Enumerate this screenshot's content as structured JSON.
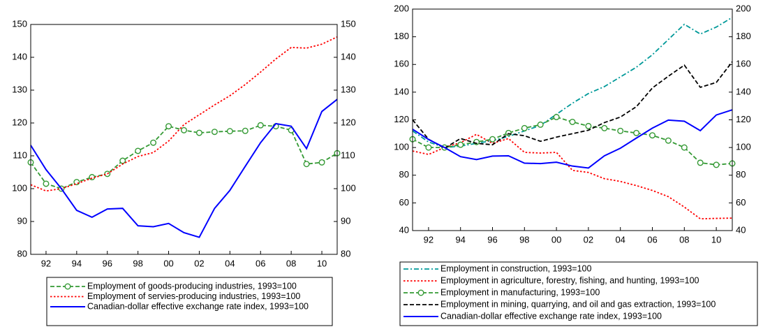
{
  "chart_data": [
    {
      "type": "line",
      "x": [
        1991,
        1992,
        1993,
        1994,
        1995,
        1996,
        1997,
        1998,
        1999,
        2000,
        2001,
        2002,
        2003,
        2004,
        2005,
        2006,
        2007,
        2008,
        2009,
        2010,
        2011
      ],
      "xlim": [
        1991,
        2011
      ],
      "xticks": [
        {
          "value": 1992,
          "label": "92"
        },
        {
          "value": 1994,
          "label": "94"
        },
        {
          "value": 1996,
          "label": "96"
        },
        {
          "value": 1998,
          "label": "98"
        },
        {
          "value": 2000,
          "label": "00"
        },
        {
          "value": 2002,
          "label": "02"
        },
        {
          "value": 2004,
          "label": "04"
        },
        {
          "value": 2006,
          "label": "06"
        },
        {
          "value": 2008,
          "label": "08"
        },
        {
          "value": 2010,
          "label": "10"
        }
      ],
      "ylim": [
        80,
        150
      ],
      "yticks": [
        80,
        90,
        100,
        110,
        120,
        130,
        140,
        150
      ],
      "y2lim": [
        80,
        150
      ],
      "y2ticks": [
        80,
        90,
        100,
        110,
        120,
        130,
        140,
        150
      ],
      "series": [
        {
          "name": "Employment of goods-producing industries, 1993=100",
          "color": "#339933",
          "style": "dashed",
          "marker": "circle",
          "values": [
            108,
            101.5,
            100,
            102,
            103.5,
            104.5,
            108.5,
            111.5,
            114,
            119,
            117.8,
            117,
            117.3,
            117.5,
            117.6,
            119.3,
            119,
            117.8,
            107.5,
            108,
            110.8
          ]
        },
        {
          "name": "Employment of servies-producing industries, 1993=100",
          "color": "#ff0000",
          "style": "dotted",
          "values": [
            101.2,
            99.3,
            100,
            101.5,
            103.2,
            104.5,
            107.5,
            109.8,
            111,
            114.5,
            119.5,
            122.5,
            125.5,
            128.3,
            131.7,
            135.5,
            139.5,
            143,
            142.8,
            144,
            146.2
          ]
        },
        {
          "name": "Canadian-dollar effective exchange rate index, 1993=100",
          "color": "#0000ff",
          "style": "solid",
          "values": [
            113.2,
            105.8,
            100,
            93.4,
            91.3,
            93.8,
            94,
            88.7,
            88.4,
            89.4,
            86.6,
            85.2,
            94,
            99.5,
            106.8,
            114,
            119.8,
            119,
            112.2,
            123.5,
            127.2
          ]
        }
      ]
    },
    {
      "type": "line",
      "x": [
        1991,
        1992,
        1993,
        1994,
        1995,
        1996,
        1997,
        1998,
        1999,
        2000,
        2001,
        2002,
        2003,
        2004,
        2005,
        2006,
        2007,
        2008,
        2009,
        2010,
        2011
      ],
      "xlim": [
        1991,
        2011
      ],
      "xticks": [
        {
          "value": 1992,
          "label": "92"
        },
        {
          "value": 1994,
          "label": "94"
        },
        {
          "value": 1996,
          "label": "96"
        },
        {
          "value": 1998,
          "label": "98"
        },
        {
          "value": 2000,
          "label": "00"
        },
        {
          "value": 2002,
          "label": "02"
        },
        {
          "value": 2004,
          "label": "04"
        },
        {
          "value": 2006,
          "label": "06"
        },
        {
          "value": 2008,
          "label": "08"
        },
        {
          "value": 2010,
          "label": "10"
        }
      ],
      "ylim": [
        40,
        200
      ],
      "yticks": [
        40,
        60,
        80,
        100,
        120,
        140,
        160,
        180,
        200
      ],
      "y2lim": [
        40,
        200
      ],
      "y2ticks": [
        40,
        60,
        80,
        100,
        120,
        140,
        160,
        180,
        200
      ],
      "series": [
        {
          "name": "Employment in construction, 1993=100",
          "color": "#009999",
          "style": "dashdot",
          "values": [
            112,
            104,
            100,
            101,
            103,
            105,
            108,
            112,
            116,
            124,
            132,
            139,
            144,
            151,
            158,
            167,
            178,
            189,
            182,
            187,
            194
          ]
        },
        {
          "name": "Employment in agriculture, forestry, fishing, and hunting, 1993=100",
          "color": "#ff0000",
          "style": "dotted",
          "values": [
            97.5,
            95,
            100,
            103.5,
            109.5,
            103,
            106.5,
            96.5,
            96,
            96.5,
            83.5,
            82,
            77.5,
            75.5,
            72.5,
            69,
            64.5,
            57,
            48.5,
            48.8,
            49
          ]
        },
        {
          "name": "Employment in manufacturing, 1993=100",
          "color": "#339933",
          "style": "dashed",
          "marker": "circle",
          "values": [
            106,
            100,
            100,
            102,
            104,
            106,
            110.5,
            114,
            116.5,
            122,
            118.5,
            115.5,
            114,
            112,
            110.5,
            108.8,
            105,
            100,
            89,
            87.5,
            88.5
          ]
        },
        {
          "name": "Employment in mining, quarrying, and oil and gas extraction, 1993=100",
          "color": "#000000",
          "style": "dashed",
          "values": [
            120,
            106,
            99.5,
            106.5,
            103,
            102,
            110,
            108.5,
            104.5,
            107.5,
            110,
            112.5,
            118,
            122,
            129.5,
            143,
            151.5,
            159.5,
            143.5,
            147,
            162
          ]
        },
        {
          "name": "Canadian-dollar effective exchange rate index, 1993=100",
          "color": "#0000ff",
          "style": "solid",
          "values": [
            113.2,
            105.8,
            100,
            93.4,
            91.3,
            93.8,
            94,
            88.7,
            88.4,
            89.4,
            86.6,
            85.2,
            94,
            99.5,
            106.8,
            114,
            119.8,
            119,
            112.2,
            123.5,
            127.2
          ]
        }
      ]
    }
  ]
}
